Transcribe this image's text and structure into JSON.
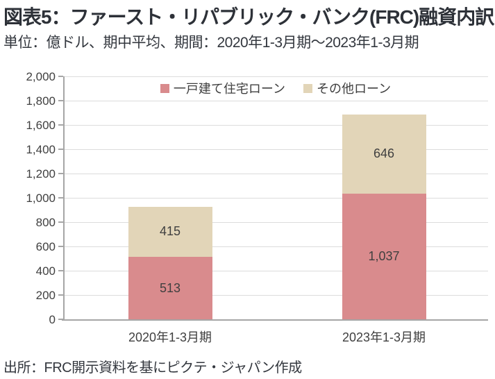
{
  "header": {
    "title": "図表5：ファースト・リパブリック・バンク(FRC)融資内訳",
    "subtitle": "単位：億ドル、期中平均、期間：2020年1-3月期～2023年1-3月期"
  },
  "footer": {
    "source": "出所：FRC開示資料を基にピクテ・ジャパン作成"
  },
  "colors": {
    "single_family_loan": "#d98b8d",
    "other_loan": "#e2d5b8",
    "gridline": "#dcdcdc",
    "axis": "#a6a6a6",
    "text_dark": "#3f3f3f",
    "title_text": "#2d3138"
  },
  "chart_data": {
    "type": "bar",
    "stacked": true,
    "title": "図表5：ファースト・リパブリック・バンク(FRC)融資内訳",
    "subtitle": "単位：億ドル、期中平均、期間：2020年1-3月期～2023年1-3月期",
    "categories": [
      "2020年1-3月期",
      "2023年1-3月期"
    ],
    "series": [
      {
        "name": "一戸建て住宅ローン",
        "color": "#d98b8d",
        "values": [
          513,
          1037
        ],
        "data_labels": [
          "513",
          "1,037"
        ]
      },
      {
        "name": "その他ローン",
        "color": "#e2d5b8",
        "values": [
          415,
          646
        ],
        "data_labels": [
          "415",
          "646"
        ]
      }
    ],
    "totals": [
      928,
      1683
    ],
    "xlabel": "",
    "ylabel": "",
    "ylim": [
      0,
      2000
    ],
    "ytick_step": 200,
    "ytick_labels": [
      "0",
      "200",
      "400",
      "600",
      "800",
      "1,000",
      "1,200",
      "1,400",
      "1,600",
      "1,800",
      "2,000"
    ],
    "grid": true,
    "legend_position": "top-center"
  }
}
